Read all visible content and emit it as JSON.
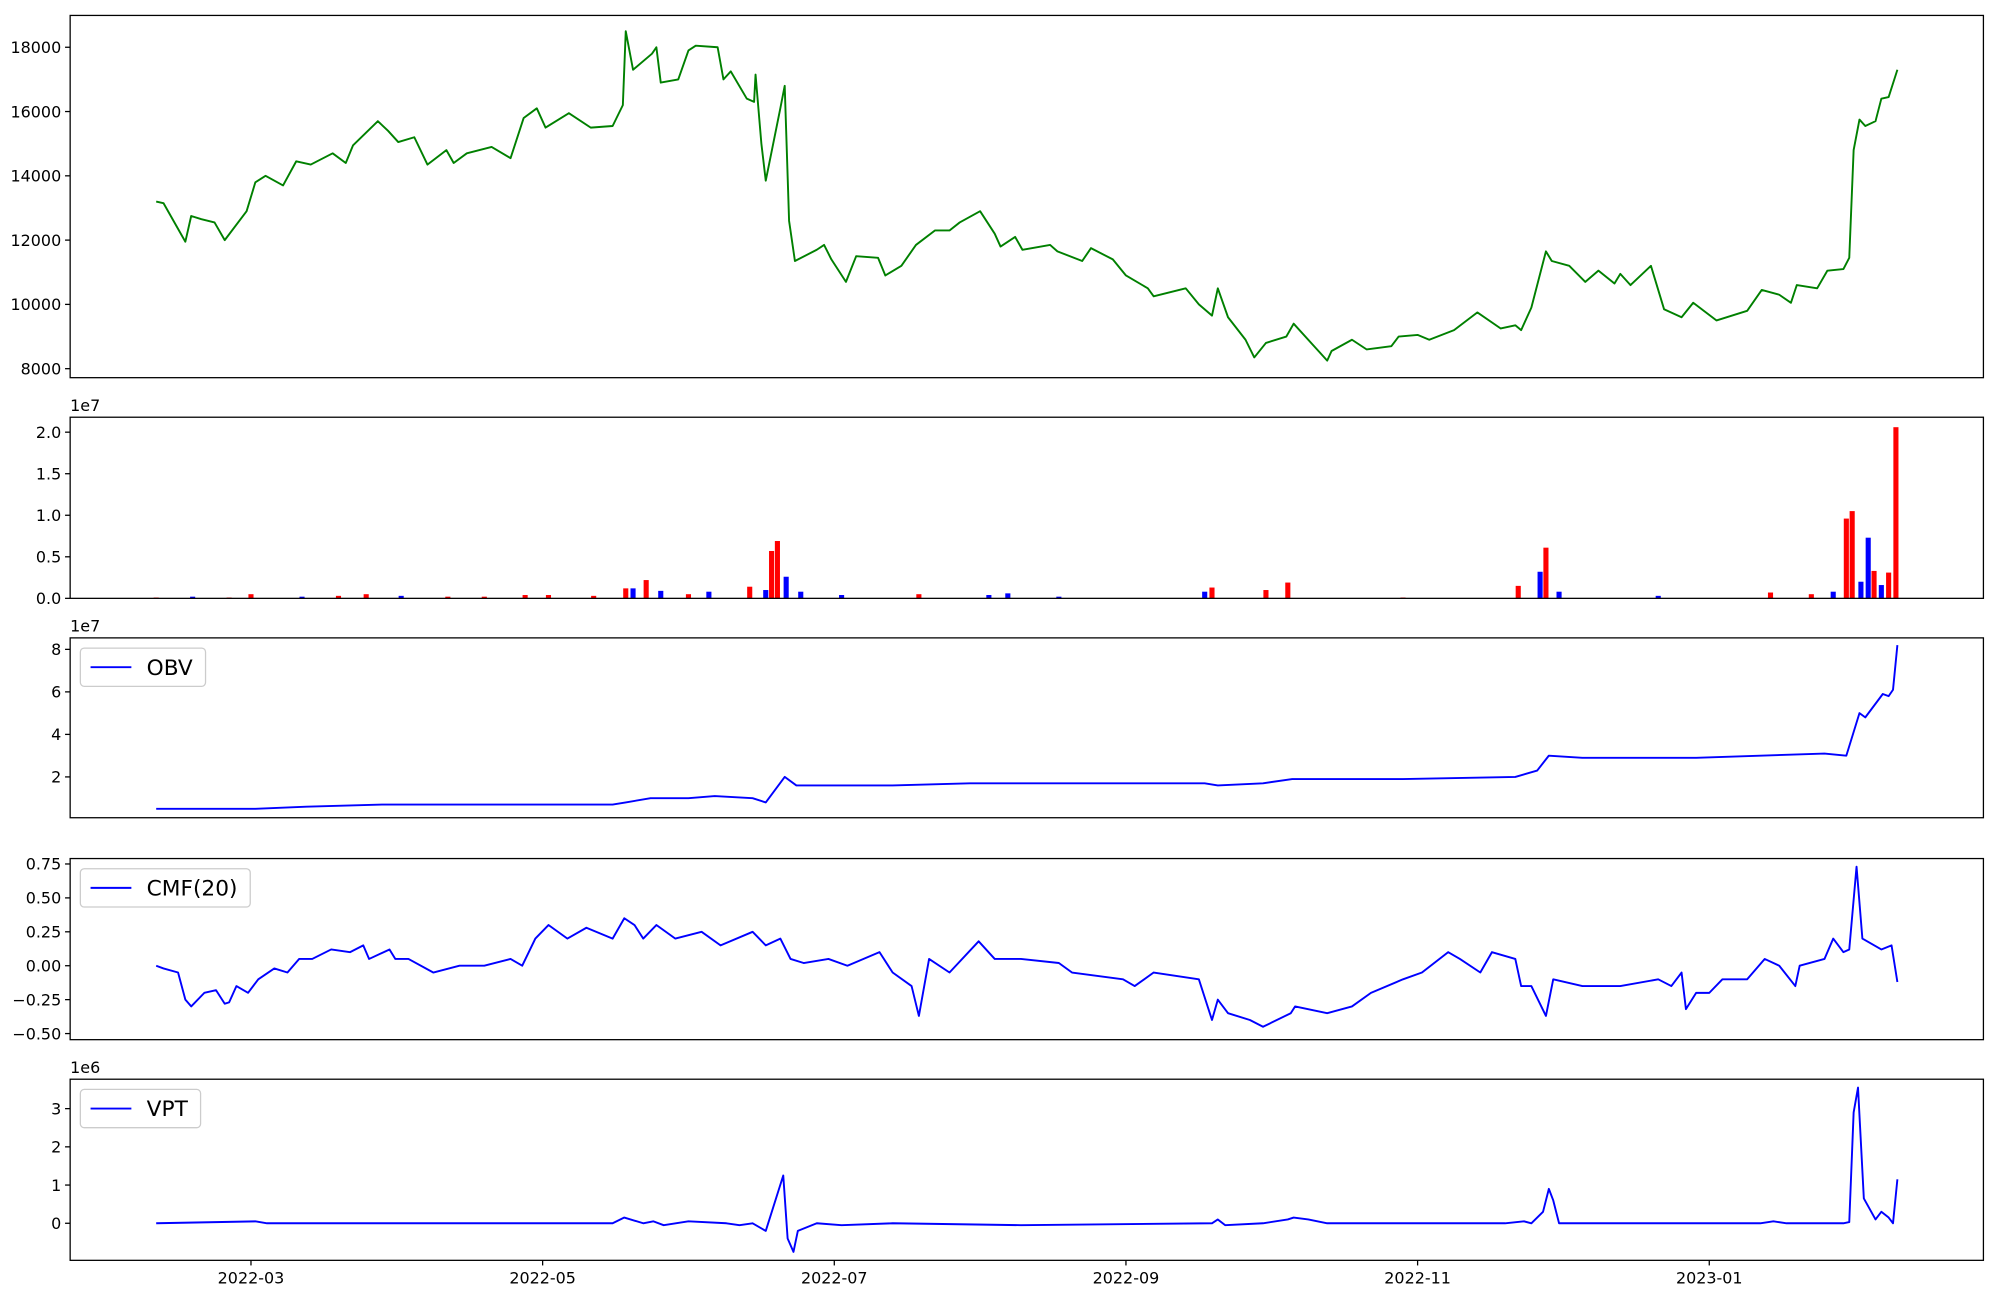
{
  "chart_data": [
    {
      "type": "line",
      "color": "#008000",
      "x": [
        2.35,
        2.4,
        2.55,
        2.59,
        2.66,
        2.75,
        2.82,
        2.97,
        3.03,
        3.1,
        3.22,
        3.31,
        3.41,
        3.56,
        3.65,
        3.7,
        3.87,
        3.94,
        4.01,
        4.12,
        4.21,
        4.34,
        4.39,
        4.48,
        4.65,
        4.78,
        4.87,
        4.96,
        5.02,
        5.18,
        5.33,
        5.48,
        5.55,
        5.57,
        5.62,
        5.75,
        5.78,
        5.81,
        5.93,
        6.0,
        6.05,
        6.2,
        6.24,
        6.29,
        6.4,
        6.45,
        6.46,
        6.5,
        6.53,
        6.63,
        6.66,
        6.69,
        6.73,
        6.88,
        6.93,
        6.98,
        7.08,
        7.15,
        7.3,
        7.35,
        7.46,
        7.56,
        7.69,
        7.79,
        7.86,
        8.0,
        8.1,
        8.14,
        8.24,
        8.29,
        8.48,
        8.53,
        8.7,
        8.76,
        8.91,
        9.0,
        9.15,
        9.19,
        9.41,
        9.5,
        9.59,
        9.63,
        9.7,
        9.82,
        9.88,
        9.96,
        10.1,
        10.15,
        10.31,
        10.38,
        10.41,
        10.55,
        10.65,
        10.82,
        10.87,
        11.0,
        11.08,
        11.25,
        11.41,
        11.57,
        11.67,
        11.71,
        11.78,
        11.88,
        11.92,
        12.04,
        12.15,
        12.24,
        12.35,
        12.39,
        12.46,
        12.6,
        12.69,
        12.81,
        12.89,
        13.05,
        13.26,
        13.36,
        13.48,
        13.56,
        13.6,
        13.74,
        13.81,
        13.92,
        13.96,
        13.99,
        14.03,
        14.07,
        14.14,
        14.18,
        14.23,
        14.29
      ],
      "values": [
        13200,
        13150,
        11950,
        12750,
        12650,
        12550,
        12000,
        12900,
        13800,
        14000,
        13700,
        14450,
        14350,
        14700,
        14400,
        14950,
        15700,
        15400,
        15050,
        15200,
        14350,
        14800,
        14400,
        14700,
        14900,
        14550,
        15800,
        16100,
        15500,
        15950,
        15500,
        15550,
        16200,
        18500,
        17300,
        17800,
        18000,
        16900,
        17000,
        17900,
        18050,
        18000,
        17000,
        17250,
        16400,
        16300,
        17150,
        15000,
        13850,
        16100,
        16800,
        12600,
        11350,
        11700,
        11850,
        11400,
        10700,
        11500,
        11450,
        10900,
        11200,
        11850,
        12300,
        12300,
        12550,
        12900,
        12200,
        11800,
        12100,
        11700,
        11850,
        11650,
        11350,
        11750,
        11400,
        10900,
        10500,
        10250,
        10500,
        10000,
        9650,
        10500,
        9600,
        8900,
        8350,
        8800,
        9000,
        9400,
        8600,
        8250,
        8550,
        8900,
        8600,
        8700,
        9000,
        9050,
        8900,
        9200,
        9750,
        9250,
        9350,
        9200,
        9900,
        11650,
        11350,
        11200,
        10700,
        11050,
        10650,
        10950,
        10600,
        11200,
        9850,
        9600,
        10050,
        9500,
        9800,
        10450,
        10300,
        10050,
        10600,
        10500,
        11050,
        11100,
        11450,
        14800,
        15750,
        15550,
        15700,
        16400,
        16450,
        17300
      ],
      "xlim": [
        1.76,
        14.88
      ],
      "ylim": [
        7720,
        18990
      ],
      "yticks": [
        8000,
        10000,
        12000,
        14000,
        16000,
        18000
      ]
    },
    {
      "type": "bar",
      "offset_label": "1e7",
      "x": [
        2.35,
        2.6,
        2.85,
        3.0,
        3.35,
        3.6,
        3.79,
        4.03,
        4.35,
        4.6,
        4.88,
        5.04,
        5.35,
        5.57,
        5.62,
        5.71,
        5.81,
        6.0,
        6.14,
        6.42,
        6.53,
        6.57,
        6.61,
        6.67,
        6.77,
        7.05,
        7.58,
        8.06,
        8.19,
        8.54,
        9.54,
        9.59,
        9.96,
        10.11,
        10.9,
        11.69,
        11.84,
        11.88,
        11.97,
        12.65,
        13.42,
        13.7,
        13.85,
        13.94,
        13.98,
        14.04,
        14.09,
        14.13,
        14.18,
        14.23,
        14.28
      ],
      "values": [
        100000,
        200000,
        100000,
        500000,
        200000,
        300000,
        500000,
        300000,
        200000,
        200000,
        400000,
        400000,
        300000,
        1200000,
        1200000,
        2200000,
        900000,
        500000,
        800000,
        1400000,
        1000000,
        5700000,
        6900000,
        2600000,
        800000,
        400000,
        500000,
        400000,
        600000,
        200000,
        800000,
        1300000,
        1000000,
        1900000,
        100000,
        1500000,
        3200000,
        6100000,
        800000,
        300000,
        700000,
        500000,
        800000,
        9600000,
        10500000,
        2000000,
        7300000,
        3300000,
        1600000,
        3100000,
        20600000
      ],
      "colors": [
        "red",
        "blue",
        "red",
        "red",
        "blue",
        "red",
        "red",
        "blue",
        "red",
        "red",
        "red",
        "red",
        "red",
        "red",
        "blue",
        "red",
        "blue",
        "red",
        "blue",
        "red",
        "blue",
        "red",
        "red",
        "blue",
        "blue",
        "blue",
        "red",
        "blue",
        "blue",
        "blue",
        "blue",
        "red",
        "red",
        "red",
        "red",
        "red",
        "blue",
        "red",
        "blue",
        "blue",
        "red",
        "red",
        "blue",
        "red",
        "red",
        "blue",
        "blue",
        "red",
        "blue",
        "red",
        "red"
      ],
      "xlim": [
        1.76,
        14.88
      ],
      "ylim": [
        0,
        21800000
      ],
      "yticks": [
        {
          "value": 0,
          "label": "0.0"
        },
        {
          "value": 5000000,
          "label": "0.5"
        },
        {
          "value": 10000000,
          "label": "1.0"
        },
        {
          "value": 15000000,
          "label": "1.5"
        },
        {
          "value": 20000000,
          "label": "2.0"
        }
      ]
    },
    {
      "type": "line",
      "offset_label": "1e7",
      "legend": "upper left",
      "x": [
        2.35,
        3.03,
        3.38,
        3.9,
        4.78,
        5.48,
        5.57,
        5.74,
        6.0,
        6.18,
        6.44,
        6.53,
        6.66,
        6.74,
        7.05,
        7.4,
        7.93,
        9.15,
        9.54,
        9.63,
        9.94,
        10.14,
        10.9,
        11.67,
        11.82,
        11.9,
        12.13,
        12.91,
        13.79,
        13.94,
        14.03,
        14.07,
        14.19,
        14.23,
        14.26,
        14.29
      ],
      "series": [
        {
          "name": "OBV",
          "color": "#0000ff",
          "values": [
            5000000,
            5000000,
            6000000,
            7000000,
            7000000,
            7000000,
            8000000,
            10000000,
            10000000,
            11000000,
            10000000,
            8000000,
            20000000,
            16000000,
            16000000,
            16000000,
            17000000,
            17000000,
            17000000,
            16000000,
            17000000,
            19000000,
            19000000,
            20000000,
            23000000,
            30000000,
            29000000,
            29000000,
            31000000,
            30000000,
            50000000,
            48000000,
            59000000,
            58000000,
            61000000,
            82000000
          ]
        }
      ],
      "xlim": [
        1.76,
        14.88
      ],
      "ylim": [
        800000,
        85400000
      ],
      "yticks": [
        {
          "value": 20000000,
          "label": "2"
        },
        {
          "value": 40000000,
          "label": "4"
        },
        {
          "value": 60000000,
          "label": "6"
        },
        {
          "value": 80000000,
          "label": "8"
        }
      ]
    },
    {
      "type": "line",
      "legend": "upper left",
      "x": [
        2.35,
        2.4,
        2.5,
        2.55,
        2.59,
        2.68,
        2.76,
        2.82,
        2.85,
        2.9,
        2.98,
        3.05,
        3.16,
        3.25,
        3.33,
        3.42,
        3.55,
        3.68,
        3.77,
        3.81,
        3.95,
        3.99,
        4.08,
        4.25,
        4.43,
        4.6,
        4.78,
        4.86,
        4.95,
        5.04,
        5.17,
        5.3,
        5.48,
        5.56,
        5.63,
        5.69,
        5.78,
        5.91,
        6.09,
        6.22,
        6.44,
        6.53,
        6.63,
        6.7,
        6.79,
        6.96,
        7.09,
        7.31,
        7.4,
        7.53,
        7.58,
        7.65,
        7.79,
        7.99,
        8.1,
        8.28,
        8.54,
        8.63,
        8.98,
        9.06,
        9.19,
        9.5,
        9.59,
        9.63,
        9.7,
        9.85,
        9.94,
        10.13,
        10.16,
        10.38,
        10.55,
        10.68,
        10.9,
        11.03,
        11.21,
        11.29,
        11.43,
        11.51,
        11.67,
        11.71,
        11.78,
        11.88,
        11.93,
        12.13,
        12.39,
        12.65,
        12.74,
        12.81,
        12.84,
        12.91,
        13.0,
        13.09,
        13.26,
        13.38,
        13.48,
        13.59,
        13.62,
        13.79,
        13.85,
        13.92,
        13.96,
        14.01,
        14.05,
        14.18,
        14.25,
        14.29
      ],
      "series": [
        {
          "name": "CMF(20)",
          "color": "#0000ff",
          "values": [
            0.0,
            -0.02,
            -0.05,
            -0.25,
            -0.3,
            -0.2,
            -0.18,
            -0.28,
            -0.27,
            -0.15,
            -0.2,
            -0.1,
            -0.02,
            -0.05,
            0.05,
            0.05,
            0.12,
            0.1,
            0.15,
            0.05,
            0.12,
            0.05,
            0.05,
            -0.05,
            0.0,
            0.0,
            0.05,
            0.0,
            0.2,
            0.3,
            0.2,
            0.28,
            0.2,
            0.35,
            0.3,
            0.2,
            0.3,
            0.2,
            0.25,
            0.15,
            0.25,
            0.15,
            0.2,
            0.05,
            0.02,
            0.05,
            0.0,
            0.1,
            -0.05,
            -0.15,
            -0.37,
            0.05,
            -0.05,
            0.18,
            0.05,
            0.05,
            0.02,
            -0.05,
            -0.1,
            -0.15,
            -0.05,
            -0.1,
            -0.4,
            -0.25,
            -0.35,
            -0.4,
            -0.45,
            -0.35,
            -0.3,
            -0.35,
            -0.3,
            -0.2,
            -0.1,
            -0.05,
            0.1,
            0.05,
            -0.05,
            0.1,
            0.05,
            -0.15,
            -0.15,
            -0.37,
            -0.1,
            -0.15,
            -0.15,
            -0.1,
            -0.15,
            -0.05,
            -0.32,
            -0.2,
            -0.2,
            -0.1,
            -0.1,
            0.05,
            0.0,
            -0.15,
            0.0,
            0.05,
            0.2,
            0.1,
            0.12,
            0.73,
            0.2,
            0.12,
            0.15,
            -0.12
          ]
        }
      ],
      "xlim": [
        1.76,
        14.88
      ],
      "ylim": [
        -0.545,
        0.79
      ],
      "yticks": [
        {
          "value": -0.5,
          "label": "−0.50"
        },
        {
          "value": -0.25,
          "label": "−0.25"
        },
        {
          "value": 0,
          "label": "0.00"
        },
        {
          "value": 0.25,
          "label": "0.25"
        },
        {
          "value": 0.5,
          "label": "0.50"
        },
        {
          "value": 0.75,
          "label": "0.75"
        }
      ]
    },
    {
      "type": "line",
      "offset_label": "1e6",
      "legend": "upper left",
      "x": [
        2.35,
        3.03,
        3.11,
        5.48,
        5.56,
        5.69,
        5.76,
        5.83,
        6.0,
        6.26,
        6.35,
        6.44,
        6.53,
        6.65,
        6.68,
        6.72,
        6.75,
        6.88,
        7.05,
        7.4,
        8.28,
        9.59,
        9.63,
        9.68,
        9.94,
        10.11,
        10.15,
        10.25,
        10.38,
        11.6,
        11.73,
        11.78,
        11.86,
        11.9,
        11.93,
        11.97,
        13.35,
        13.44,
        13.53,
        13.92,
        13.96,
        13.99,
        14.02,
        14.06,
        14.14,
        14.18,
        14.23,
        14.26,
        14.29
      ],
      "series": [
        {
          "name": "VPT",
          "color": "#0000ff",
          "values": [
            0,
            50000,
            0,
            0,
            150000,
            0,
            50000,
            -50000,
            50000,
            0,
            -50000,
            0,
            -200000,
            1250000,
            -400000,
            -750000,
            -200000,
            0,
            -50000,
            0,
            -50000,
            0,
            100000,
            -50000,
            0,
            100000,
            150000,
            100000,
            0,
            0,
            50000,
            0,
            300000,
            900000,
            600000,
            0,
            0,
            50000,
            0,
            0,
            30000,
            2900000,
            3550000,
            650000,
            100000,
            300000,
            150000,
            0,
            1150000
          ]
        }
      ],
      "xlim": [
        1.76,
        14.88
      ],
      "ylim": [
        -970000,
        3770000
      ],
      "yticks": [
        0,
        {
          "value": 1000000,
          "label": "1"
        },
        {
          "value": 2000000,
          "label": "2"
        },
        {
          "value": 3000000,
          "label": "3"
        }
      ],
      "xticks": [
        {
          "value": 3,
          "label": "2022-03"
        },
        {
          "value": 5,
          "label": "2022-05"
        },
        {
          "value": 7,
          "label": "2022-07"
        },
        {
          "value": 9,
          "label": "2022-09"
        },
        {
          "value": 11,
          "label": "2022-11"
        },
        {
          "value": 13,
          "label": "2023-01"
        }
      ]
    }
  ]
}
